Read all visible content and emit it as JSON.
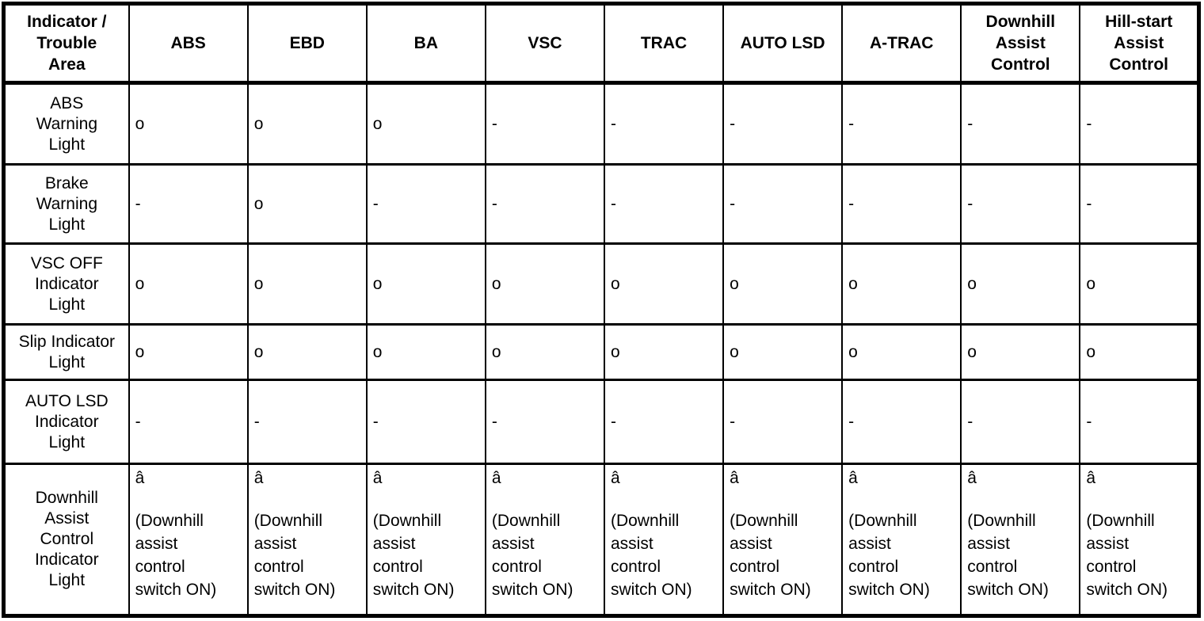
{
  "table": {
    "corner_header": "Indicator /\nTrouble\nArea",
    "columns": [
      "ABS",
      "EBD",
      "BA",
      "VSC",
      "TRAC",
      "AUTO LSD",
      "A-TRAC",
      "Downhill\nAssist\nControl",
      "Hill-start\nAssist\nControl"
    ],
    "rows": [
      {
        "label": "ABS\nWarning\nLight",
        "cells": [
          "o",
          "o",
          "o",
          "-",
          "-",
          "-",
          "-",
          "-",
          "-"
        ]
      },
      {
        "label": "Brake\nWarning\nLight",
        "cells": [
          "-",
          "o",
          "-",
          "-",
          "-",
          "-",
          "-",
          "-",
          "-"
        ]
      },
      {
        "label": "VSC OFF\nIndicator\nLight",
        "cells": [
          "o",
          "o",
          "o",
          "o",
          "o",
          "o",
          "o",
          "o",
          "o"
        ]
      },
      {
        "label": "Slip Indicator\nLight",
        "cells": [
          "o",
          "o",
          "o",
          "o",
          "o",
          "o",
          "o",
          "o",
          "o"
        ]
      },
      {
        "label": "AUTO LSD\nIndicator\nLight",
        "cells": [
          "-",
          "-",
          "-",
          "-",
          "-",
          "-",
          "-",
          "-",
          "-"
        ]
      },
      {
        "label": "Downhill\nAssist\nControl\nIndicator\nLight",
        "cells": [
          {
            "symbol": "â",
            "note": "(Downhill\nassist\ncontrol\nswitch ON)"
          },
          {
            "symbol": "â",
            "note": "(Downhill\nassist\ncontrol\nswitch ON)"
          },
          {
            "symbol": "â",
            "note": "(Downhill\nassist\ncontrol\nswitch ON)"
          },
          {
            "symbol": "â",
            "note": "(Downhill\nassist\ncontrol\nswitch ON)"
          },
          {
            "symbol": "â",
            "note": "(Downhill\nassist\ncontrol\nswitch ON)"
          },
          {
            "symbol": "â",
            "note": "(Downhill\nassist\ncontrol\nswitch ON)"
          },
          {
            "symbol": "â",
            "note": "(Downhill\nassist\ncontrol\nswitch ON)"
          },
          {
            "symbol": "â",
            "note": "(Downhill\nassist\ncontrol\nswitch ON)"
          },
          {
            "symbol": "â",
            "note": "(Downhill\nassist\ncontrol\nswitch ON)"
          }
        ]
      }
    ],
    "colors": {
      "border": "#000000",
      "text": "#000000",
      "background": "#ffffff"
    }
  }
}
